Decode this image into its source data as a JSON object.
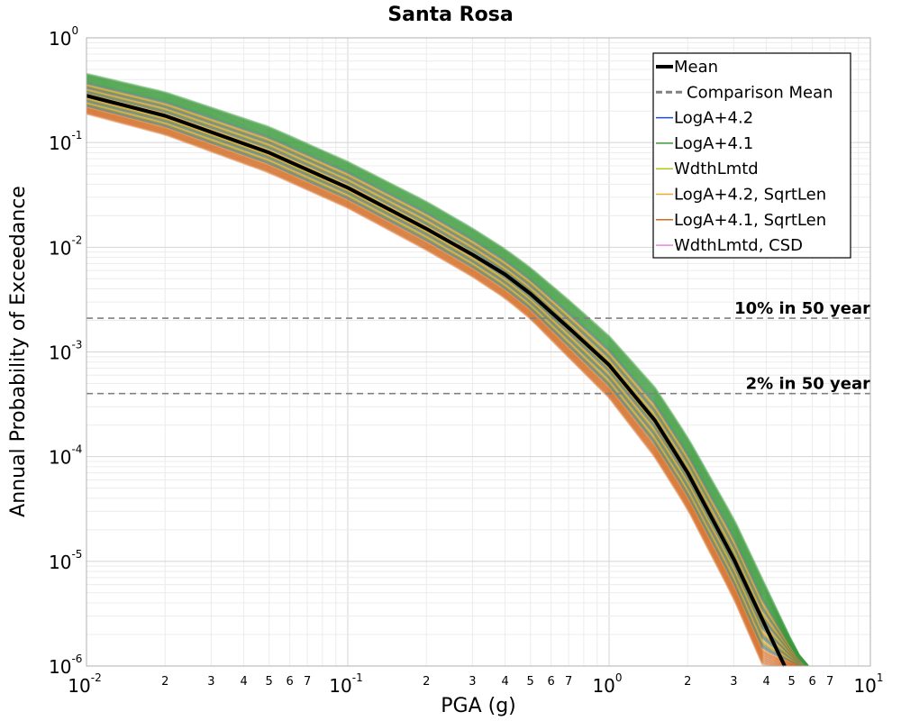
{
  "chart_data": {
    "type": "line",
    "title": "Santa Rosa",
    "xlabel": "PGA (g)",
    "ylabel": "Annual Probability of Exceedance",
    "x_scale": "log",
    "y_scale": "log",
    "xlim": [
      0.01,
      10
    ],
    "ylim": [
      1e-06,
      1
    ],
    "grid": true,
    "legend_position": "top-right",
    "x_major_ticks": [
      {
        "base": "10",
        "exp": "-2"
      },
      {
        "base": "10",
        "exp": "-1"
      },
      {
        "base": "10",
        "exp": "0"
      },
      {
        "base": "10",
        "exp": "1"
      }
    ],
    "x_minor_tick_labels": [
      "2",
      "3",
      "4",
      "5",
      "6",
      "7"
    ],
    "y_major_ticks": [
      {
        "base": "10",
        "exp": "0"
      },
      {
        "base": "10",
        "exp": "-1"
      },
      {
        "base": "10",
        "exp": "-2"
      },
      {
        "base": "10",
        "exp": "-3"
      },
      {
        "base": "10",
        "exp": "-4"
      },
      {
        "base": "10",
        "exp": "-5"
      },
      {
        "base": "10",
        "exp": "-6"
      }
    ],
    "series": [
      {
        "name": "Mean",
        "color": "#000000",
        "style": "solid",
        "x": [
          0.01,
          0.02,
          0.05,
          0.1,
          0.2,
          0.3,
          0.4,
          0.5,
          0.7,
          1.0,
          1.5,
          2.0,
          3.0,
          4.0,
          4.7
        ],
        "y": [
          0.28,
          0.18,
          0.08,
          0.037,
          0.015,
          0.0085,
          0.0055,
          0.0036,
          0.0017,
          0.00075,
          0.00022,
          7e-05,
          1.05e-05,
          2.3e-06,
          1e-06
        ]
      },
      {
        "name": "Comparison Mean",
        "color": "#808080",
        "style": "dashed"
      },
      {
        "name": "LogA+4.2",
        "color": "#1f4fbf",
        "style": "solid"
      },
      {
        "name": "LogA+4.1",
        "color": "#3a9a3a",
        "style": "solid"
      },
      {
        "name": "WdthLmtd",
        "color": "#b5c41a",
        "style": "solid"
      },
      {
        "name": "LogA+4.2, SqrtLen",
        "color": "#f0a830",
        "style": "solid"
      },
      {
        "name": "LogA+4.1, SqrtLen",
        "color": "#d2691e",
        "style": "solid"
      },
      {
        "name": "WdthLmtd, CSD",
        "color": "#f080e0",
        "style": "solid"
      }
    ],
    "band": {
      "upper": {
        "x": [
          0.01,
          0.02,
          0.05,
          0.1,
          0.2,
          0.3,
          0.4,
          0.5,
          0.7,
          1.0,
          1.5,
          2.0,
          3.0,
          4.0,
          5.0,
          5.6
        ],
        "y": [
          0.45,
          0.3,
          0.14,
          0.065,
          0.027,
          0.015,
          0.0095,
          0.0063,
          0.0031,
          0.0014,
          0.00045,
          0.00015,
          2.5e-05,
          5.5e-06,
          1.7e-06,
          1e-06
        ]
      },
      "lower": {
        "x": [
          0.01,
          0.02,
          0.05,
          0.1,
          0.2,
          0.3,
          0.4,
          0.5,
          0.7,
          1.0,
          1.5,
          2.0,
          3.0,
          3.9
        ],
        "y": [
          0.19,
          0.12,
          0.052,
          0.024,
          0.0095,
          0.0053,
          0.0033,
          0.0021,
          0.0009,
          0.00037,
          0.0001,
          3.2e-05,
          4.5e-06,
          1e-06
        ]
      },
      "colors": [
        "#3a9a3a",
        "#d2691e",
        "#b5c41a",
        "#f0a830",
        "#1f4fbf"
      ]
    },
    "reference_lines": [
      {
        "label": "10% in 50 year",
        "y": 0.0021,
        "color": "#808080",
        "style": "dashed"
      },
      {
        "label": "2% in 50 year",
        "y": 0.0004,
        "color": "#808080",
        "style": "dashed"
      }
    ]
  }
}
